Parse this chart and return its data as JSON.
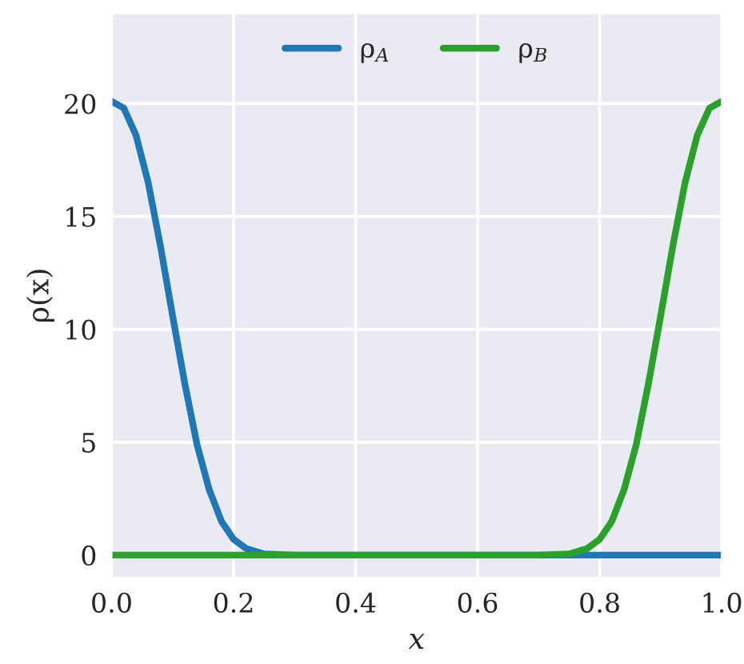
{
  "chart_data": {
    "type": "line",
    "xlabel": "x",
    "ylabel": "ρ(x)",
    "xlim": [
      0.0,
      1.0
    ],
    "xticks": [
      {
        "value": 0,
        "label": "0.0"
      },
      0.2,
      0.4,
      0.6,
      0.8,
      {
        "value": 1,
        "label": "1.0"
      }
    ],
    "ylim": [
      -1,
      24
    ],
    "yticks": [
      0,
      5,
      10,
      15,
      20
    ],
    "grid": true,
    "legend": "top",
    "line_style": "solid",
    "marker": "none",
    "series": [
      {
        "name": "ρ$_{A}$",
        "color": "#1f77b4",
        "x": [
          0,
          0.02,
          0.04,
          0.06,
          0.08,
          0.1,
          0.12,
          0.14,
          0.16,
          0.18,
          0.2,
          0.22,
          0.25,
          0.3,
          1.0
        ],
        "values": [
          20.1,
          19.8,
          18.6,
          16.5,
          13.7,
          10.6,
          7.6,
          4.9,
          2.9,
          1.5,
          0.7,
          0.3,
          0.05,
          0,
          0
        ]
      },
      {
        "name": "ρ$_{B}$",
        "color": "#2ca02c",
        "x": [
          0,
          0.7,
          0.75,
          0.78,
          0.8,
          0.82,
          0.84,
          0.86,
          0.88,
          0.9,
          0.92,
          0.94,
          0.96,
          0.98,
          1.0
        ],
        "values": [
          0,
          0,
          0.05,
          0.3,
          0.7,
          1.5,
          2.9,
          4.9,
          7.6,
          10.6,
          13.7,
          16.5,
          18.6,
          19.8,
          20.1
        ]
      }
    ]
  }
}
